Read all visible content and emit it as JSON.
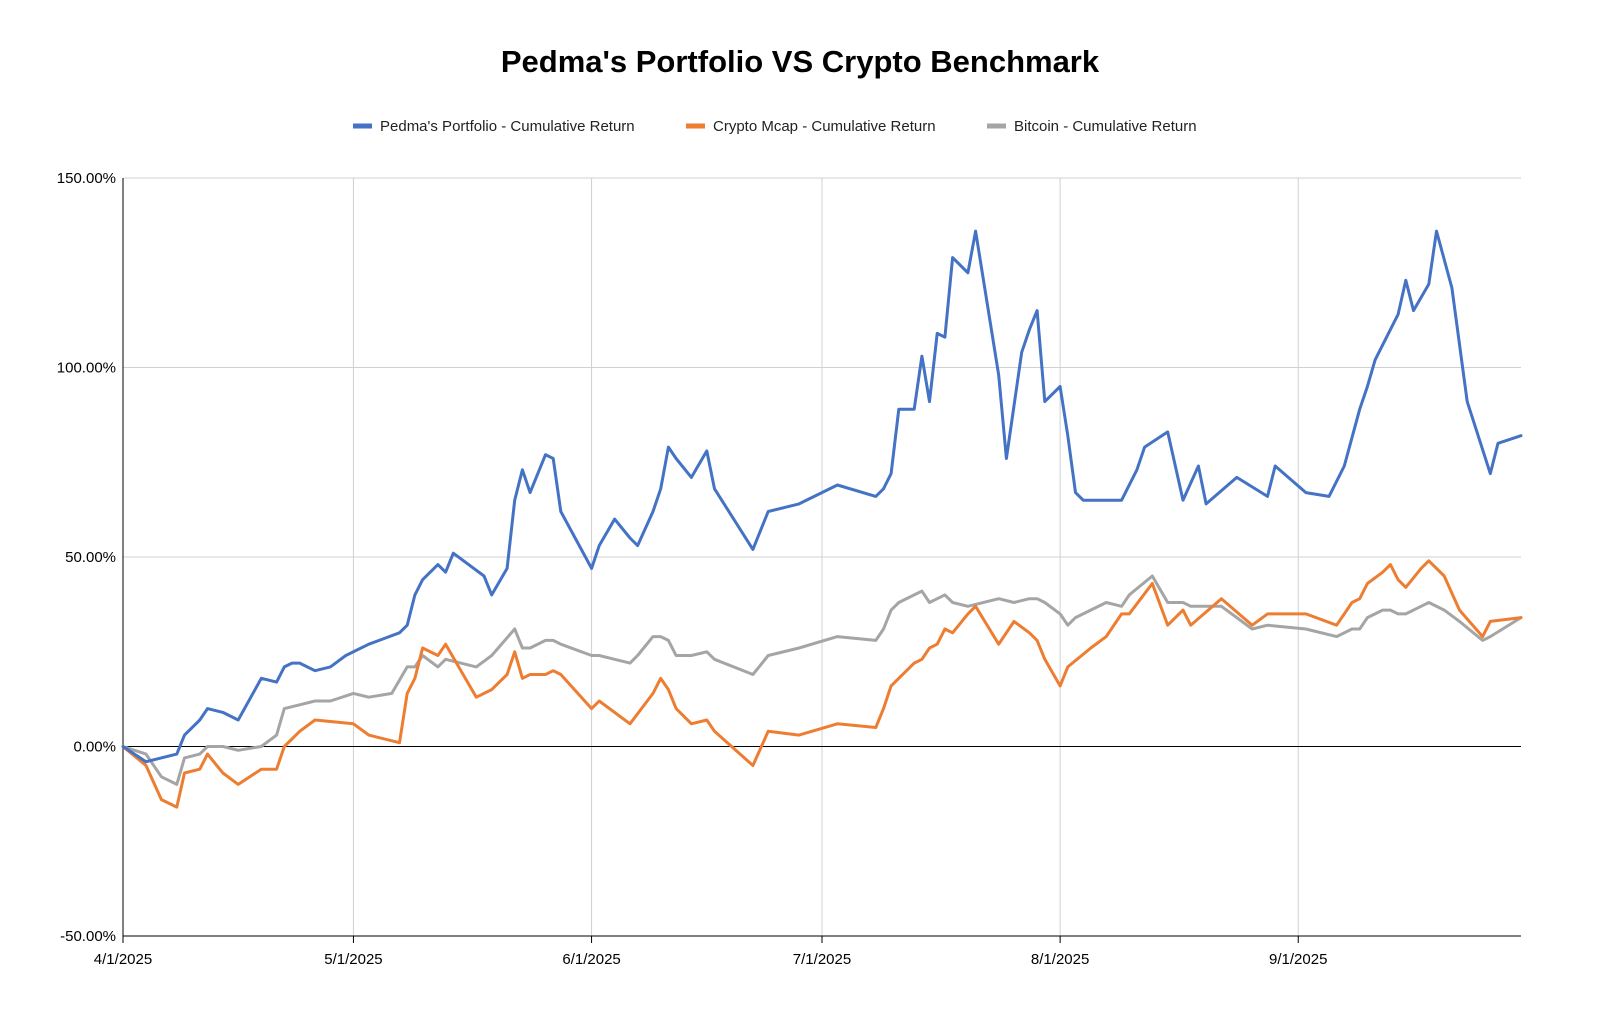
{
  "chart_data": {
    "type": "line",
    "title": "Pedma's Portfolio VS Crypto Benchmark",
    "xlabel": "",
    "ylabel": "",
    "ylim": [
      -50,
      150
    ],
    "y_ticks": [
      {
        "value": 150,
        "label": "150.00%"
      },
      {
        "value": 100,
        "label": "100.00%"
      },
      {
        "value": 50,
        "label": "50.00%"
      },
      {
        "value": 0,
        "label": "0.00%"
      },
      {
        "value": -50,
        "label": "-50.00%"
      }
    ],
    "x_domain_days": [
      0,
      182
    ],
    "x_ticks": [
      {
        "day": 0,
        "label": "4/1/2025"
      },
      {
        "day": 30,
        "label": "5/1/2025"
      },
      {
        "day": 61,
        "label": "6/1/2025"
      },
      {
        "day": 91,
        "label": "7/1/2025"
      },
      {
        "day": 122,
        "label": "8/1/2025"
      },
      {
        "day": 153,
        "label": "9/1/2025"
      }
    ],
    "grid": true,
    "legend_position": "top-center",
    "series": [
      {
        "name": "Pedma's Portfolio - Cumulative Return",
        "color": "#4472C4",
        "points": [
          [
            0,
            0
          ],
          [
            3,
            -4
          ],
          [
            7,
            -2
          ],
          [
            8,
            3
          ],
          [
            10,
            7
          ],
          [
            11,
            10
          ],
          [
            13,
            9
          ],
          [
            15,
            7
          ],
          [
            18,
            18
          ],
          [
            20,
            17
          ],
          [
            21,
            21
          ],
          [
            22,
            22
          ],
          [
            23,
            22
          ],
          [
            25,
            20
          ],
          [
            27,
            21
          ],
          [
            29,
            24
          ],
          [
            32,
            27
          ],
          [
            36,
            30
          ],
          [
            37,
            32
          ],
          [
            38,
            40
          ],
          [
            39,
            44
          ],
          [
            41,
            48
          ],
          [
            42,
            46
          ],
          [
            43,
            51
          ],
          [
            47,
            45
          ],
          [
            48,
            40
          ],
          [
            50,
            47
          ],
          [
            51,
            65
          ],
          [
            52,
            73
          ],
          [
            53,
            67
          ],
          [
            55,
            77
          ],
          [
            56,
            76
          ],
          [
            57,
            62
          ],
          [
            61,
            47
          ],
          [
            62,
            53
          ],
          [
            64,
            60
          ],
          [
            66,
            55
          ],
          [
            67,
            53
          ],
          [
            69,
            62
          ],
          [
            70,
            68
          ],
          [
            71,
            79
          ],
          [
            72,
            76
          ],
          [
            74,
            71
          ],
          [
            76,
            78
          ],
          [
            77,
            68
          ],
          [
            82,
            52
          ],
          [
            84,
            62
          ],
          [
            88,
            64
          ],
          [
            93,
            69
          ],
          [
            98,
            66
          ],
          [
            99,
            68
          ],
          [
            100,
            72
          ],
          [
            101,
            89
          ],
          [
            103,
            89
          ],
          [
            104,
            103
          ],
          [
            105,
            91
          ],
          [
            106,
            109
          ],
          [
            107,
            108
          ],
          [
            108,
            129
          ],
          [
            110,
            125
          ],
          [
            111,
            136
          ],
          [
            114,
            98
          ],
          [
            115,
            76
          ],
          [
            117,
            104
          ],
          [
            118,
            110
          ],
          [
            119,
            115
          ],
          [
            120,
            91
          ],
          [
            122,
            95
          ],
          [
            123,
            82
          ],
          [
            124,
            67
          ],
          [
            125,
            65
          ],
          [
            130,
            65
          ],
          [
            132,
            73
          ],
          [
            133,
            79
          ],
          [
            136,
            83
          ],
          [
            138,
            65
          ],
          [
            140,
            74
          ],
          [
            141,
            64
          ],
          [
            145,
            71
          ],
          [
            149,
            66
          ],
          [
            150,
            74
          ],
          [
            154,
            67
          ],
          [
            157,
            66
          ],
          [
            159,
            74
          ],
          [
            161,
            89
          ],
          [
            162,
            95
          ],
          [
            163,
            102
          ],
          [
            165,
            110
          ],
          [
            166,
            114
          ],
          [
            167,
            123
          ],
          [
            168,
            115
          ],
          [
            170,
            122
          ],
          [
            171,
            136
          ],
          [
            173,
            121
          ],
          [
            175,
            91
          ],
          [
            178,
            72
          ],
          [
            179,
            80
          ],
          [
            182,
            82
          ]
        ]
      },
      {
        "name": "Crypto Mcap - Cumulative Return",
        "color": "#ED7D31",
        "points": [
          [
            0,
            0
          ],
          [
            3,
            -5
          ],
          [
            5,
            -14
          ],
          [
            7,
            -16
          ],
          [
            8,
            -7
          ],
          [
            10,
            -6
          ],
          [
            11,
            -2
          ],
          [
            13,
            -7
          ],
          [
            15,
            -10
          ],
          [
            18,
            -6
          ],
          [
            20,
            -6
          ],
          [
            21,
            0
          ],
          [
            23,
            4
          ],
          [
            25,
            7
          ],
          [
            30,
            6
          ],
          [
            32,
            3
          ],
          [
            36,
            1
          ],
          [
            37,
            14
          ],
          [
            38,
            18
          ],
          [
            39,
            26
          ],
          [
            41,
            24
          ],
          [
            42,
            27
          ],
          [
            46,
            13
          ],
          [
            48,
            15
          ],
          [
            50,
            19
          ],
          [
            51,
            25
          ],
          [
            52,
            18
          ],
          [
            53,
            19
          ],
          [
            55,
            19
          ],
          [
            56,
            20
          ],
          [
            57,
            19
          ],
          [
            61,
            10
          ],
          [
            62,
            12
          ],
          [
            66,
            6
          ],
          [
            69,
            14
          ],
          [
            70,
            18
          ],
          [
            71,
            15
          ],
          [
            72,
            10
          ],
          [
            74,
            6
          ],
          [
            76,
            7
          ],
          [
            77,
            4
          ],
          [
            82,
            -5
          ],
          [
            84,
            4
          ],
          [
            88,
            3
          ],
          [
            93,
            6
          ],
          [
            98,
            5
          ],
          [
            99,
            10
          ],
          [
            100,
            16
          ],
          [
            102,
            20
          ],
          [
            103,
            22
          ],
          [
            104,
            23
          ],
          [
            105,
            26
          ],
          [
            106,
            27
          ],
          [
            107,
            31
          ],
          [
            108,
            30
          ],
          [
            110,
            35
          ],
          [
            111,
            37
          ],
          [
            114,
            27
          ],
          [
            116,
            33
          ],
          [
            118,
            30
          ],
          [
            119,
            28
          ],
          [
            120,
            23
          ],
          [
            122,
            16
          ],
          [
            123,
            21
          ],
          [
            126,
            26
          ],
          [
            128,
            29
          ],
          [
            130,
            35
          ],
          [
            131,
            35
          ],
          [
            134,
            43
          ],
          [
            136,
            32
          ],
          [
            138,
            36
          ],
          [
            139,
            32
          ],
          [
            143,
            39
          ],
          [
            147,
            32
          ],
          [
            149,
            35
          ],
          [
            154,
            35
          ],
          [
            158,
            32
          ],
          [
            160,
            38
          ],
          [
            161,
            39
          ],
          [
            162,
            43
          ],
          [
            164,
            46
          ],
          [
            165,
            48
          ],
          [
            166,
            44
          ],
          [
            167,
            42
          ],
          [
            169,
            47
          ],
          [
            170,
            49
          ],
          [
            172,
            45
          ],
          [
            174,
            36
          ],
          [
            177,
            29
          ],
          [
            178,
            33
          ],
          [
            182,
            34
          ]
        ]
      },
      {
        "name": "Bitcoin - Cumulative Return",
        "color": "#A5A5A5",
        "points": [
          [
            0,
            0
          ],
          [
            3,
            -2
          ],
          [
            5,
            -8
          ],
          [
            7,
            -10
          ],
          [
            8,
            -3
          ],
          [
            10,
            -2
          ],
          [
            11,
            0
          ],
          [
            13,
            0
          ],
          [
            15,
            -1
          ],
          [
            18,
            0
          ],
          [
            20,
            3
          ],
          [
            21,
            10
          ],
          [
            23,
            11
          ],
          [
            25,
            12
          ],
          [
            27,
            12
          ],
          [
            30,
            14
          ],
          [
            32,
            13
          ],
          [
            35,
            14
          ],
          [
            37,
            21
          ],
          [
            38,
            21
          ],
          [
            39,
            24
          ],
          [
            41,
            21
          ],
          [
            42,
            23
          ],
          [
            46,
            21
          ],
          [
            48,
            24
          ],
          [
            51,
            31
          ],
          [
            52,
            26
          ],
          [
            53,
            26
          ],
          [
            55,
            28
          ],
          [
            56,
            28
          ],
          [
            57,
            27
          ],
          [
            61,
            24
          ],
          [
            62,
            24
          ],
          [
            64,
            23
          ],
          [
            66,
            22
          ],
          [
            67,
            24
          ],
          [
            69,
            29
          ],
          [
            70,
            29
          ],
          [
            71,
            28
          ],
          [
            72,
            24
          ],
          [
            74,
            24
          ],
          [
            76,
            25
          ],
          [
            77,
            23
          ],
          [
            82,
            19
          ],
          [
            84,
            24
          ],
          [
            88,
            26
          ],
          [
            93,
            29
          ],
          [
            98,
            28
          ],
          [
            99,
            31
          ],
          [
            100,
            36
          ],
          [
            101,
            38
          ],
          [
            103,
            40
          ],
          [
            104,
            41
          ],
          [
            105,
            38
          ],
          [
            106,
            39
          ],
          [
            107,
            40
          ],
          [
            108,
            38
          ],
          [
            110,
            37
          ],
          [
            114,
            39
          ],
          [
            116,
            38
          ],
          [
            118,
            39
          ],
          [
            119,
            39
          ],
          [
            120,
            38
          ],
          [
            122,
            35
          ],
          [
            123,
            32
          ],
          [
            124,
            34
          ],
          [
            128,
            38
          ],
          [
            130,
            37
          ],
          [
            131,
            40
          ],
          [
            134,
            45
          ],
          [
            136,
            38
          ],
          [
            138,
            38
          ],
          [
            139,
            37
          ],
          [
            143,
            37
          ],
          [
            147,
            31
          ],
          [
            149,
            32
          ],
          [
            154,
            31
          ],
          [
            158,
            29
          ],
          [
            160,
            31
          ],
          [
            161,
            31
          ],
          [
            162,
            34
          ],
          [
            164,
            36
          ],
          [
            165,
            36
          ],
          [
            166,
            35
          ],
          [
            167,
            35
          ],
          [
            169,
            37
          ],
          [
            170,
            38
          ],
          [
            172,
            36
          ],
          [
            174,
            33
          ],
          [
            177,
            28
          ],
          [
            178,
            29
          ],
          [
            182,
            34
          ]
        ]
      }
    ]
  }
}
